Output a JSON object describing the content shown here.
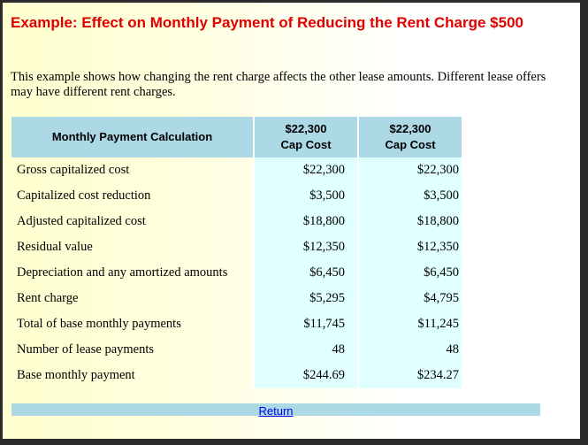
{
  "title": "Example: Effect on Monthly Payment of Reducing the Rent Charge $500",
  "intro": "This example shows how changing the rent charge affects the other lease amounts. Different lease offers may have different rent charges.",
  "table": {
    "header_label": "Monthly Payment Calculation",
    "columns": [
      {
        "line1": "$22,300",
        "line2": "Cap Cost"
      },
      {
        "line1": "$22,300",
        "line2": "Cap Cost"
      }
    ],
    "rows": [
      {
        "label": "Gross capitalized cost",
        "values": [
          "$22,300",
          "$22,300"
        ]
      },
      {
        "label": "Capitalized cost reduction",
        "values": [
          "$3,500",
          "$3,500"
        ]
      },
      {
        "label": "Adjusted capitalized cost",
        "values": [
          "$18,800",
          "$18,800"
        ]
      },
      {
        "label": "Residual value",
        "values": [
          "$12,350",
          "$12,350"
        ]
      },
      {
        "label": "Depreciation and any amortized amounts",
        "values": [
          "$6,450",
          "$6,450"
        ]
      },
      {
        "label": "Rent charge",
        "values": [
          "$5,295",
          "$4,795"
        ]
      },
      {
        "label": "Total of base monthly payments",
        "values": [
          "$11,745",
          "$11,245"
        ]
      },
      {
        "label": "Number of lease payments",
        "values": [
          "48",
          "48"
        ]
      },
      {
        "label": "Base monthly payment",
        "values": [
          "$244.69",
          "$234.27"
        ]
      }
    ]
  },
  "footer": {
    "return_label": "Return"
  },
  "colors": {
    "title": "#e00000",
    "header_bg": "#add8e6",
    "value_cell_bg": "#e0ffff",
    "link": "#0000ee"
  }
}
